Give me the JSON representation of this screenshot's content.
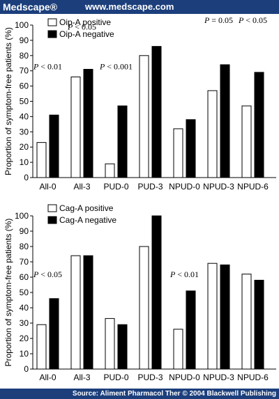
{
  "header": {
    "brand": "Medscape®",
    "url": "www.medscape.com"
  },
  "footer": {
    "source": "Source: Aliment Pharmacol Ther © 2004 Blackwell Publishing"
  },
  "colors": {
    "banner": "#1c3f7c",
    "positive": "#ffffff",
    "negative": "#000000"
  },
  "chart_data": [
    {
      "type": "bar",
      "ylabel": "Proportion of symptom-free patients (%)",
      "ylim": [
        0,
        100
      ],
      "yticks": [
        0,
        10,
        20,
        30,
        40,
        50,
        60,
        70,
        80,
        90,
        100
      ],
      "categories": [
        "All-0",
        "All-3",
        "PUD-0",
        "PUD-3",
        "NPUD-0",
        "NPUD-3",
        "NPUD-6"
      ],
      "series": [
        {
          "name": "Oip-A positive",
          "values": [
            23,
            66,
            9,
            80,
            32,
            57,
            47
          ]
        },
        {
          "name": "Oip-A negative",
          "values": [
            41,
            71,
            47,
            86,
            38,
            74,
            69
          ]
        }
      ],
      "legend": "top-left",
      "annotations": [
        {
          "label": "P < 0.01",
          "category": "All-0",
          "y": 71
        },
        {
          "label": "P < 0.05",
          "category": "All-3",
          "y": 97
        },
        {
          "label": "P < 0.001",
          "category": "PUD-0",
          "y": 71
        },
        {
          "label": "P = 0.05",
          "category": "NPUD-3",
          "y": 102
        },
        {
          "label": "P < 0.05",
          "category": "NPUD-6",
          "y": 102
        }
      ]
    },
    {
      "type": "bar",
      "ylabel": "Proportion of symptom-free patients (%)",
      "ylim": [
        0,
        100
      ],
      "yticks": [
        0,
        10,
        20,
        30,
        40,
        50,
        60,
        70,
        80,
        90,
        100
      ],
      "categories": [
        "All-0",
        "All-3",
        "PUD-0",
        "PUD-3",
        "NPUD-0",
        "NPUD-3",
        "NPUD-6"
      ],
      "series": [
        {
          "name": "Cag-A positive",
          "values": [
            29,
            74,
            33,
            80,
            26,
            69,
            62
          ]
        },
        {
          "name": "Cag-A negative",
          "values": [
            46,
            74,
            29,
            100,
            51,
            68,
            58
          ]
        }
      ],
      "legend": "top-left",
      "annotations": [
        {
          "label": "P < 0.05",
          "category": "All-0",
          "y": 60
        },
        {
          "label": "P < 0.01",
          "category": "NPUD-0",
          "y": 60
        }
      ]
    }
  ]
}
